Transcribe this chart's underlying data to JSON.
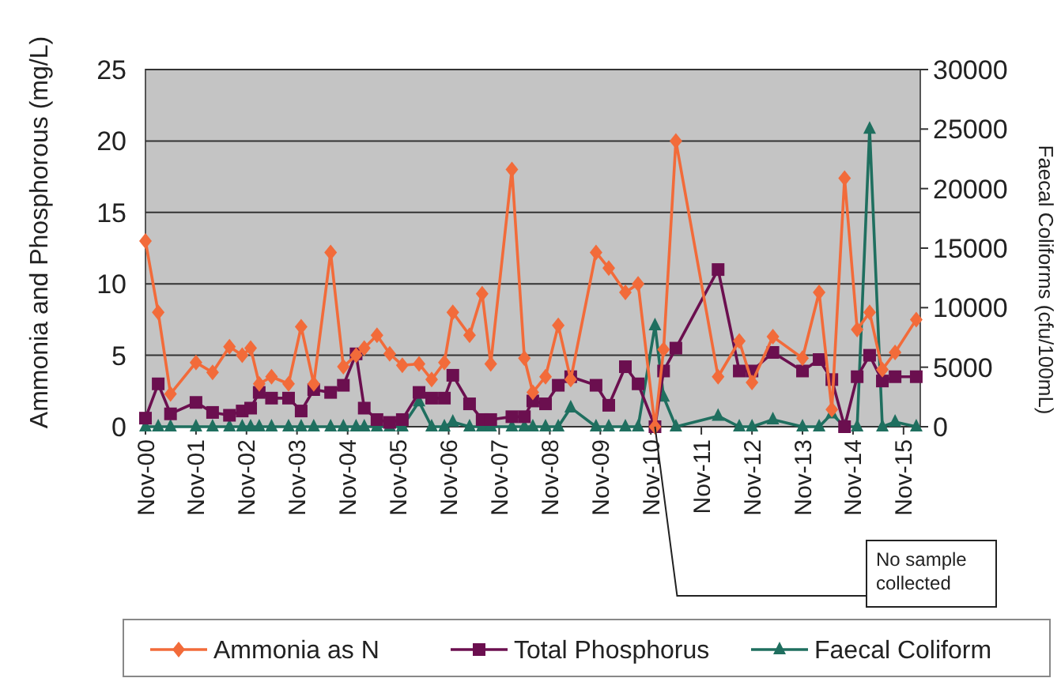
{
  "chart_data": {
    "type": "line",
    "xlabel": null,
    "ylabel": "Ammonia and Phosphorous (mg/L)",
    "y2label": "Faecal Coliforms (cfu/100mL)",
    "x": [
      "2000-11",
      "2001-02",
      "2001-05",
      "2001-11",
      "2002-03",
      "2002-07",
      "2002-10",
      "2002-12",
      "2003-02",
      "2003-05",
      "2003-09",
      "2003-12",
      "2004-03",
      "2004-07",
      "2004-10",
      "2005-01",
      "2005-03",
      "2005-06",
      "2005-09",
      "2005-12",
      "2006-04",
      "2006-07",
      "2006-10",
      "2006-12",
      "2007-04",
      "2007-07",
      "2007-09",
      "2008-02",
      "2008-05",
      "2008-07",
      "2008-10",
      "2009-01",
      "2009-04",
      "2009-10",
      "2010-01",
      "2010-05",
      "2010-08",
      "2010-12",
      "2011-02",
      "2011-05",
      "2012-03",
      "2012-08",
      "2012-11",
      "2013-04",
      "2013-11",
      "2014-03",
      "2014-06",
      "2014-09",
      "2014-12",
      "2015-03",
      "2015-06",
      "2015-09",
      "2016-02"
    ],
    "series": [
      {
        "name": "Ammonia as N",
        "color": "#f26b3a",
        "marker": "diamond",
        "values": [
          13,
          8,
          2.3,
          4.5,
          3.8,
          5.6,
          5,
          5.5,
          3,
          3.5,
          3,
          7,
          3,
          12.2,
          4.2,
          5,
          5.5,
          6.4,
          5.1,
          4.3,
          4.4,
          3.3,
          4.5,
          8,
          6.4,
          9.3,
          4.4,
          18,
          4.8,
          2.4,
          3.5,
          7.1,
          3.3,
          12.2,
          11.1,
          9.4,
          10,
          0,
          5.4,
          20,
          3.5,
          6,
          3.1,
          6.3,
          4.8,
          9.4,
          1.2,
          17.4,
          6.8,
          8,
          4,
          5.2,
          7.5
        ]
      },
      {
        "name": "Total Phosphorus",
        "color": "#6b0f4f",
        "marker": "square",
        "values": [
          0.6,
          3,
          0.9,
          1.7,
          1,
          0.8,
          1.1,
          1.3,
          2.4,
          2,
          2,
          1.1,
          2.6,
          2.4,
          2.9,
          5.1,
          1.3,
          0.5,
          0.3,
          0.5,
          2.4,
          2,
          2,
          3.6,
          1.6,
          0.5,
          0.5,
          0.7,
          0.7,
          1.8,
          1.6,
          2.9,
          3.5,
          2.9,
          1.5,
          4.2,
          3,
          0,
          3.9,
          5.5,
          11,
          3.9,
          3.9,
          5.2,
          3.9,
          4.7,
          3.3,
          0,
          3.5,
          5,
          3.2,
          3.5,
          3.5
        ]
      },
      {
        "name": "Faecal Coliform",
        "color": "#1f6f5f",
        "marker": "triangle",
        "axis": "y2",
        "values": [
          0,
          0,
          0,
          0,
          0,
          0,
          0,
          0,
          0,
          0,
          0,
          0,
          0,
          0,
          0,
          0,
          0,
          0,
          0,
          0,
          2100,
          0,
          0,
          400,
          0,
          0,
          0,
          0,
          0,
          0,
          0,
          0,
          1600,
          0,
          0,
          0,
          0,
          8500,
          2500,
          0,
          900,
          0,
          0,
          600,
          0,
          0,
          1100,
          0,
          0,
          25000,
          0,
          400,
          0
        ]
      }
    ],
    "xlim": [
      "2000-11",
      "2016-03"
    ],
    "xticks": [
      {
        "value": "2000-11",
        "label": "Nov-00"
      },
      {
        "value": "2001-11",
        "label": "Nov-01"
      },
      {
        "value": "2002-11",
        "label": "Nov-02"
      },
      {
        "value": "2003-11",
        "label": "Nov-03"
      },
      {
        "value": "2004-11",
        "label": "Nov-04"
      },
      {
        "value": "2005-11",
        "label": "Nov-05"
      },
      {
        "value": "2006-11",
        "label": "Nov-06"
      },
      {
        "value": "2007-11",
        "label": "Nov-07"
      },
      {
        "value": "2008-11",
        "label": "Nov-08"
      },
      {
        "value": "2009-11",
        "label": "Nov-09"
      },
      {
        "value": "2010-11",
        "label": "Nov-10"
      },
      {
        "value": "2011-11",
        "label": "Nov-11"
      },
      {
        "value": "2012-11",
        "label": "Nov-12"
      },
      {
        "value": "2013-11",
        "label": "Nov-13"
      },
      {
        "value": "2014-11",
        "label": "Nov-14"
      },
      {
        "value": "2015-11",
        "label": "Nov-15"
      }
    ],
    "ylim": [
      0,
      25
    ],
    "yticks": [
      0,
      5,
      10,
      15,
      20,
      25
    ],
    "y2lim": [
      0,
      30000
    ],
    "y2ticks": [
      0,
      5000,
      10000,
      15000,
      20000,
      25000,
      30000
    ],
    "grid": "y",
    "legend": "bottom",
    "annotations": [
      {
        "text": "No sample collected",
        "x": "2010-12",
        "y": 0
      }
    ]
  }
}
